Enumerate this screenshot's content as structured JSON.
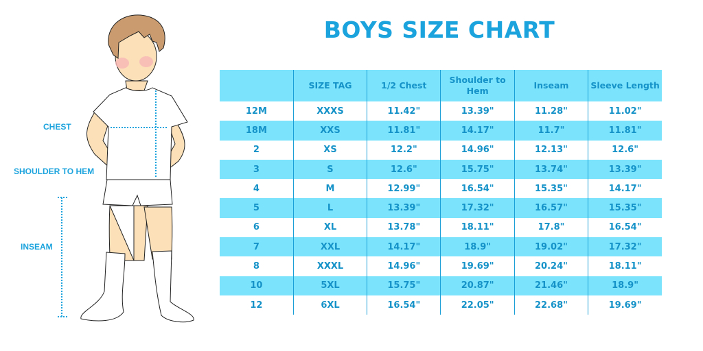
{
  "title": "BOYS SIZE CHART",
  "figure_labels": {
    "chest": "CHEST",
    "shoulder_to_hem": "SHOULDER TO HEM",
    "inseam": "INSEAM"
  },
  "colors": {
    "accent": "#1ba3dd",
    "row_highlight": "#7be4fc"
  },
  "table": {
    "headers": [
      "",
      "SIZE TAG",
      "1/2 Chest",
      "Shoulder to Hem",
      "Inseam",
      "Sleeve Length"
    ],
    "rows": [
      [
        "12M",
        "XXXS",
        "11.42\"",
        "13.39\"",
        "11.28\"",
        "11.02\""
      ],
      [
        "18M",
        "XXS",
        "11.81\"",
        "14.17\"",
        "11.7\"",
        "11.81\""
      ],
      [
        "2",
        "XS",
        "12.2\"",
        "14.96\"",
        "12.13\"",
        "12.6\""
      ],
      [
        "3",
        "S",
        "12.6\"",
        "15.75\"",
        "13.74\"",
        "13.39\""
      ],
      [
        "4",
        "M",
        "12.99\"",
        "16.54\"",
        "15.35\"",
        "14.17\""
      ],
      [
        "5",
        "L",
        "13.39\"",
        "17.32\"",
        "16.57\"",
        "15.35\""
      ],
      [
        "6",
        "XL",
        "13.78\"",
        "18.11\"",
        "17.8\"",
        "16.54\""
      ],
      [
        "7",
        "XXL",
        "14.17\"",
        "18.9\"",
        "19.02\"",
        "17.32\""
      ],
      [
        "8",
        "XXXL",
        "14.96\"",
        "19.69\"",
        "20.24\"",
        "18.11\""
      ],
      [
        "10",
        "5XL",
        "15.75\"",
        "20.87\"",
        "21.46\"",
        "18.9\""
      ],
      [
        "12",
        "6XL",
        "16.54\"",
        "22.05\"",
        "22.68\"",
        "19.69\""
      ]
    ]
  }
}
